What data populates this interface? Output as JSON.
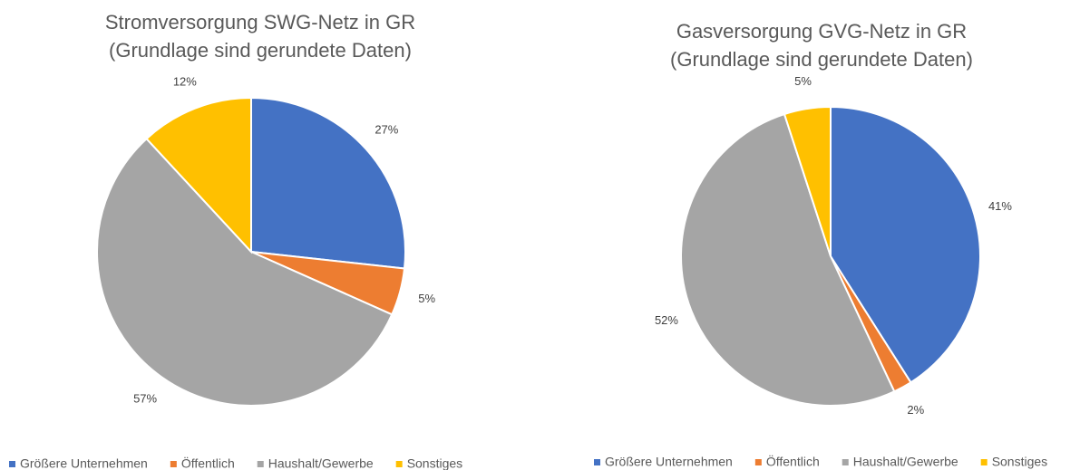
{
  "chart_data": [
    {
      "type": "pie",
      "title": [
        "Stromversorgung SWG-Netz in GR",
        "(Grundlage sind gerundete Daten)"
      ],
      "categories": [
        "Größere Unternehmen",
        "Öffentlich",
        "Haushalt/Gewerbe",
        "Sonstiges"
      ],
      "values": [
        27,
        5,
        57,
        12
      ],
      "value_labels": [
        "27%",
        "5%",
        "57%",
        "12%"
      ],
      "colors": [
        "#4472c4",
        "#ed7d31",
        "#a5a5a5",
        "#ffc000"
      ],
      "legend": "bottom"
    },
    {
      "type": "pie",
      "title": [
        "Gasversorgung GVG-Netz in GR",
        "(Grundlage sind gerundete Daten)"
      ],
      "categories": [
        "Größere Unternehmen",
        "Öffentlich",
        "Haushalt/Gewerbe",
        "Sonstiges"
      ],
      "values": [
        41,
        2,
        52,
        5
      ],
      "value_labels": [
        "41%",
        "2%",
        "52%",
        "5%"
      ],
      "colors": [
        "#4472c4",
        "#ed7d31",
        "#a5a5a5",
        "#ffc000"
      ],
      "legend": "bottom"
    }
  ]
}
